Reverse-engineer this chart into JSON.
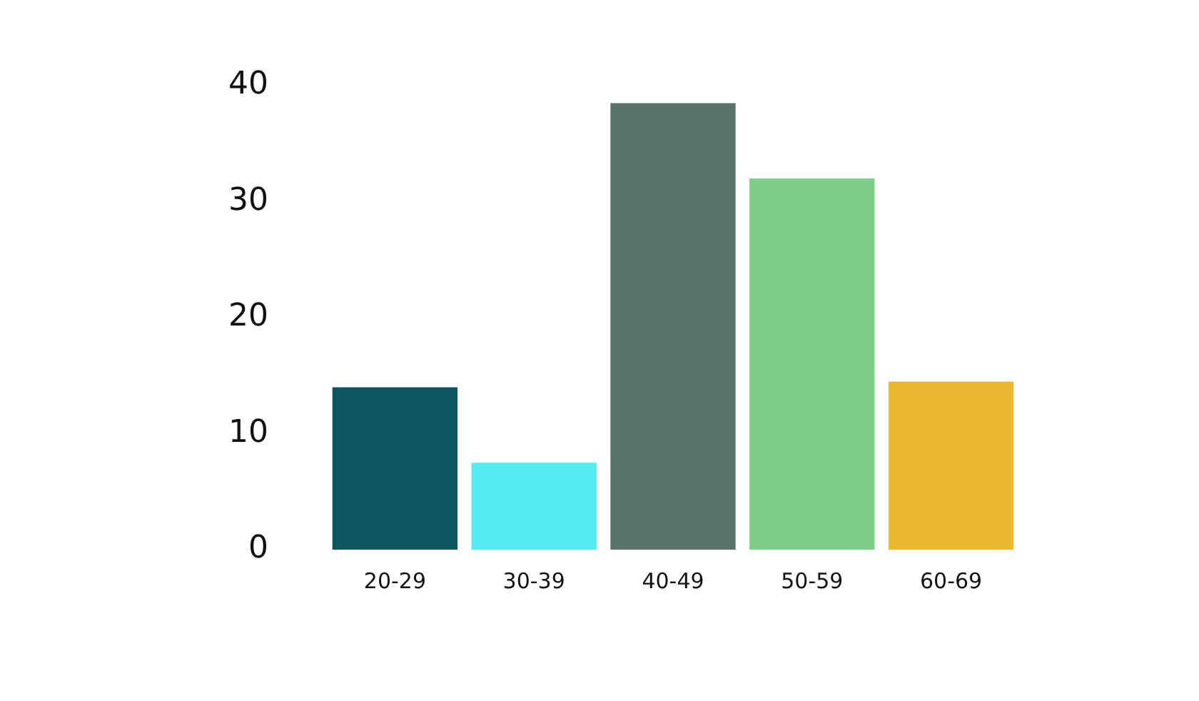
{
  "chart_data": {
    "type": "bar",
    "categories": [
      "20-29",
      "30-39",
      "40-49",
      "50-59",
      "60-69"
    ],
    "values": [
      14,
      7.5,
      38.5,
      32,
      14.5
    ],
    "colors": [
      "#0e5561",
      "#56ebf0",
      "#5a7368",
      "#7dcf88",
      "#ecb834"
    ],
    "ylim": [
      0,
      40
    ],
    "yticks": [
      0,
      10,
      20,
      30,
      40
    ],
    "grid": false,
    "legend": false
  }
}
